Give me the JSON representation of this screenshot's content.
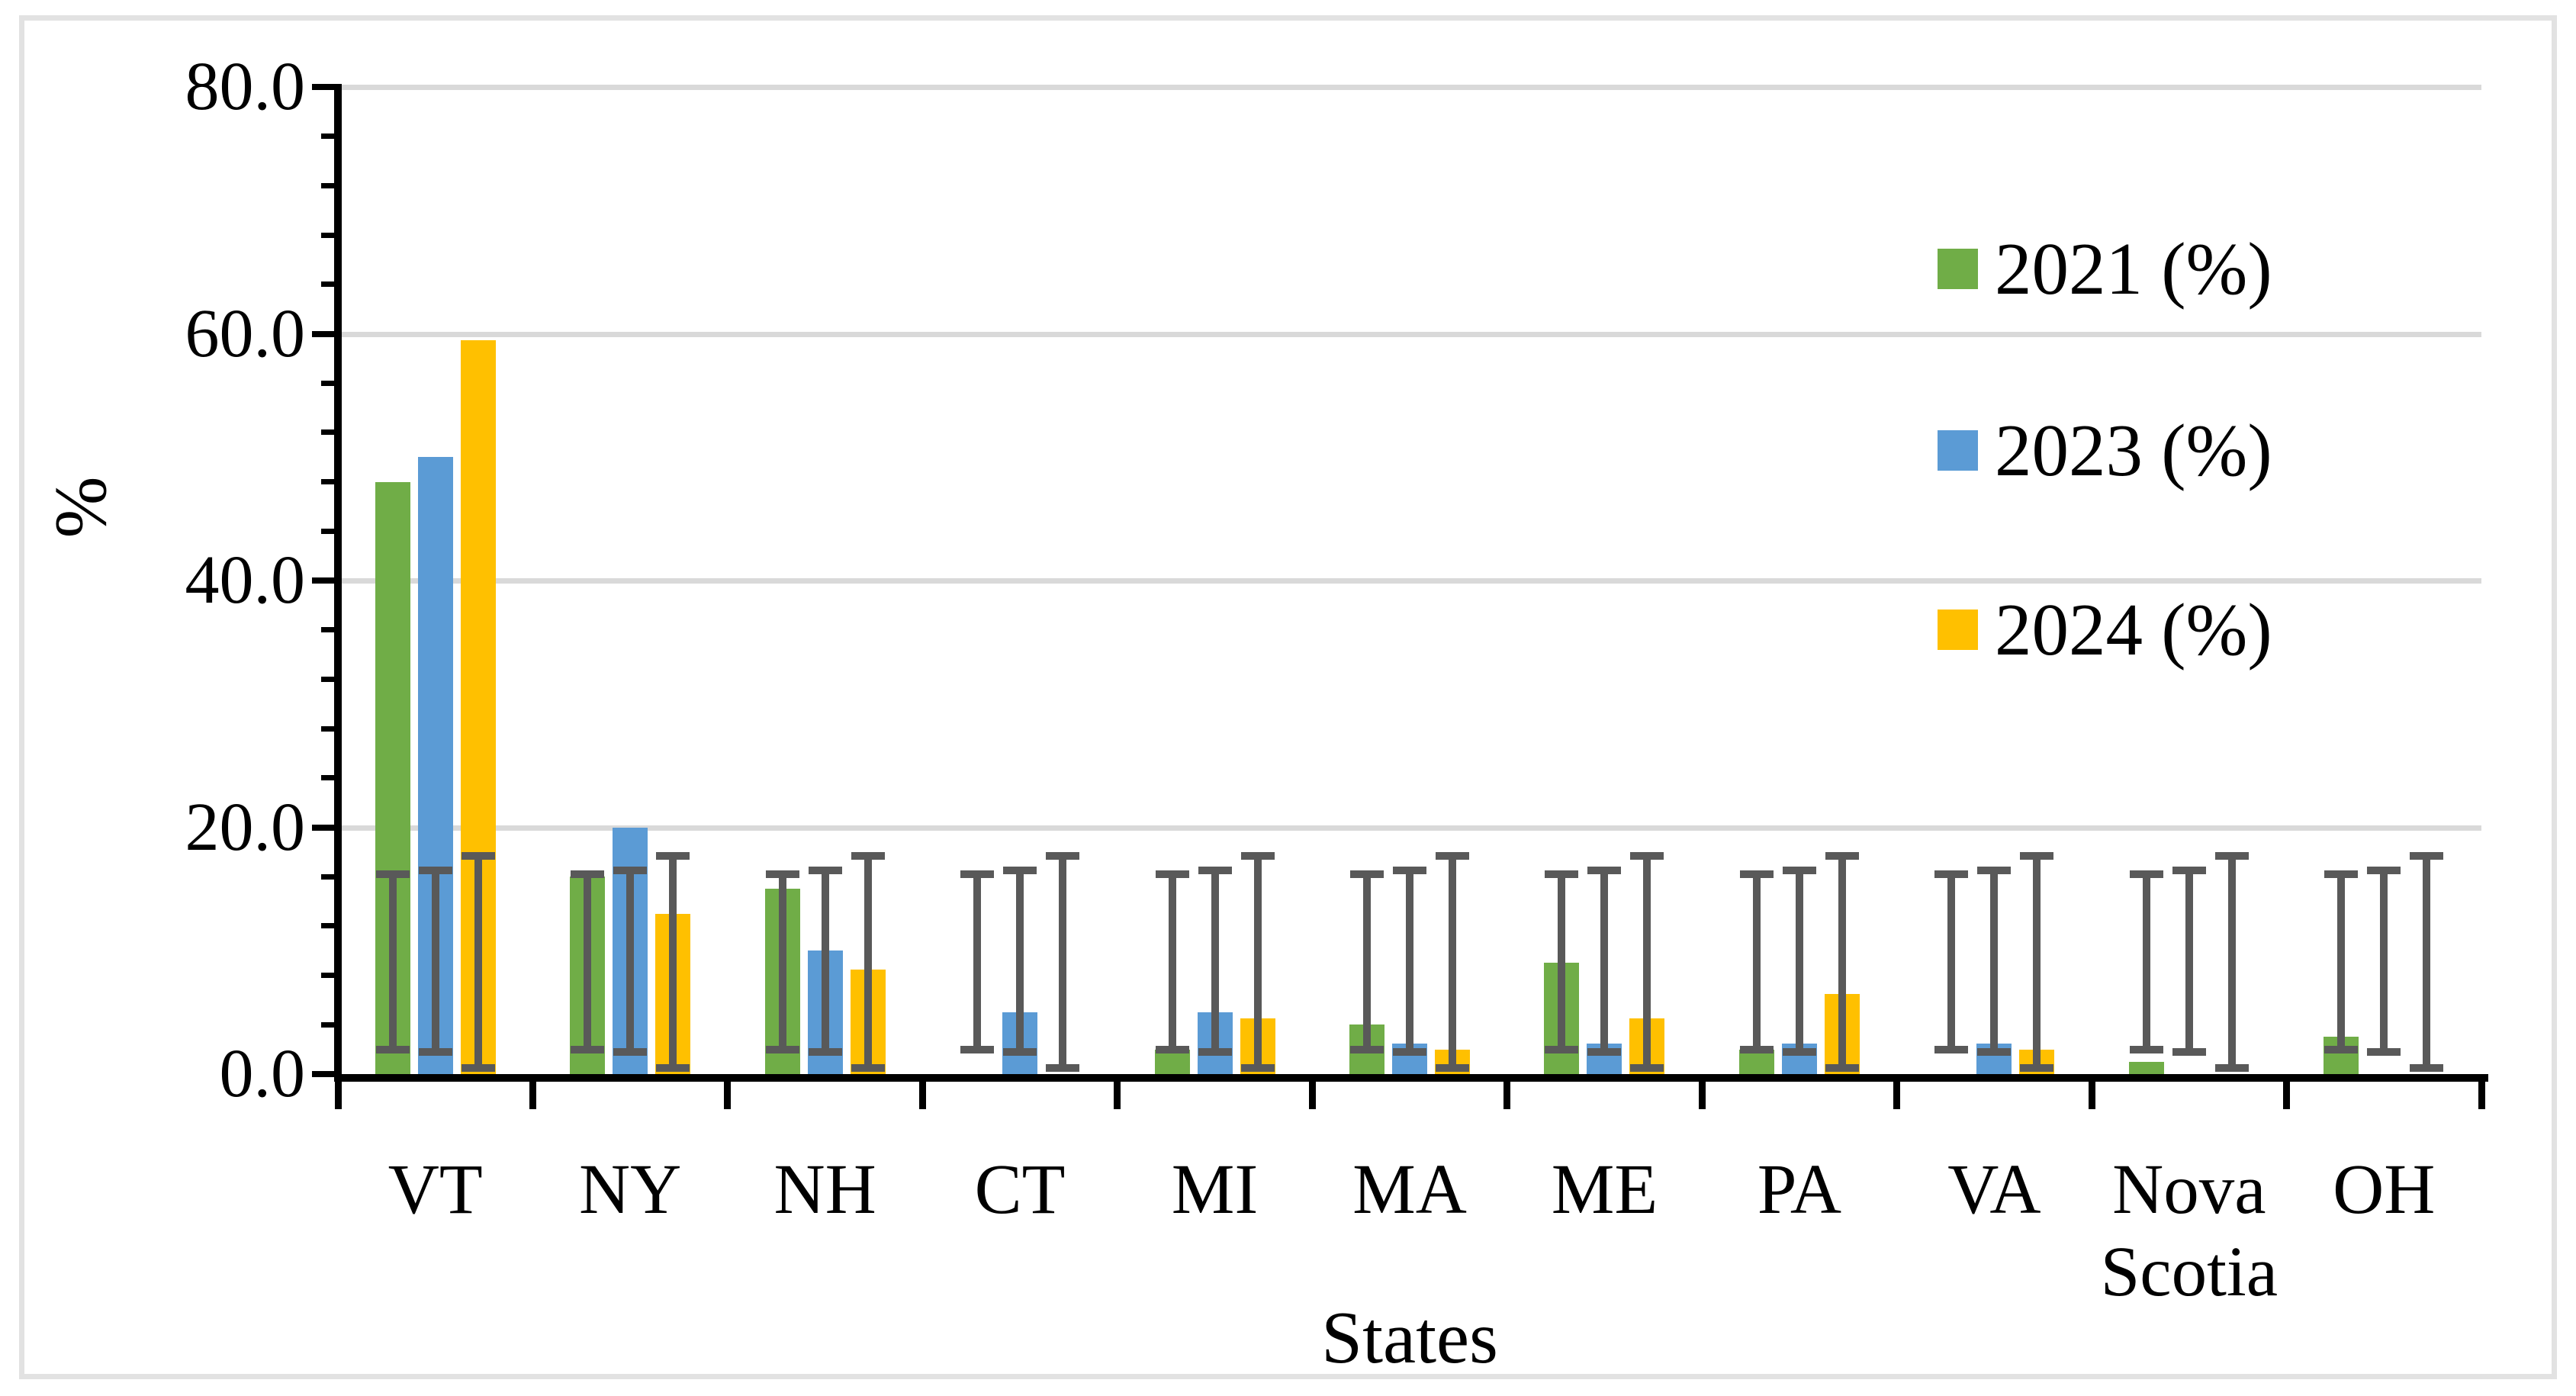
{
  "figure": {
    "background": "#FFFFFF",
    "border_color": "#E2E2E2"
  },
  "chart_data": {
    "type": "bar",
    "title": "",
    "xlabel": "States",
    "ylabel": "%",
    "ylim": [
      0,
      80
    ],
    "ytick_major_interval": 20,
    "ytick_minor_interval": 4,
    "grid": "horizontal-major",
    "gridline_color": "#D9D9D9",
    "error_bar_color": "#595959",
    "legend_position": "inside-top-right",
    "categories": [
      "VT",
      "NY",
      "NH",
      "CT",
      "MI",
      "MA",
      "ME",
      "PA",
      "VA",
      "Nova Scotia",
      "OH"
    ],
    "series": [
      {
        "name": "2021 (%)",
        "color": "#70AD47",
        "values": [
          48,
          16,
          15,
          0,
          2,
          4,
          9,
          2,
          0,
          1,
          3
        ],
        "error_low": 2.0,
        "error_high": 16.2
      },
      {
        "name": "2023 (%)",
        "color": "#5B9BD5",
        "values": [
          50,
          20,
          10,
          5,
          5,
          2.5,
          2.5,
          2.5,
          2.5,
          0,
          0
        ],
        "error_low": 1.8,
        "error_high": 16.5
      },
      {
        "name": "2024 (%)",
        "color": "#FFC000",
        "values": [
          59.5,
          13,
          8.5,
          0,
          4.5,
          2,
          4.5,
          6.5,
          2,
          0,
          0
        ],
        "error_low": 0.5,
        "error_high": 17.7
      }
    ]
  },
  "axes": {
    "y_tick_labels": [
      "80.0",
      "60.0",
      "40.0",
      "20.0",
      "0.0"
    ],
    "y_title": "%",
    "x_title": "States"
  }
}
